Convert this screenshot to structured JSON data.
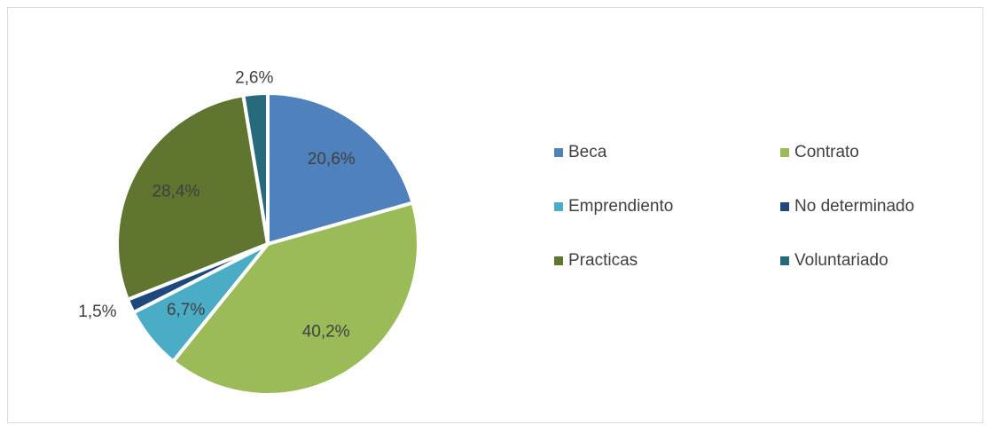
{
  "chart_data": {
    "type": "pie",
    "categories": [
      "Beca",
      "Contrato",
      "Emprendiento",
      "No determinado",
      "Practicas",
      "Voluntariado"
    ],
    "values": [
      20.6,
      40.2,
      6.7,
      1.5,
      28.4,
      2.6
    ],
    "value_labels": [
      "20,6%",
      "40,2%",
      "6,7%",
      "1,5%",
      "28,4%",
      "2,6%"
    ],
    "colors": [
      "#4f81bd",
      "#9bbb59",
      "#4bacc6",
      "#1f497d",
      "#5f7530",
      "#276a7c"
    ],
    "legend": "right"
  }
}
